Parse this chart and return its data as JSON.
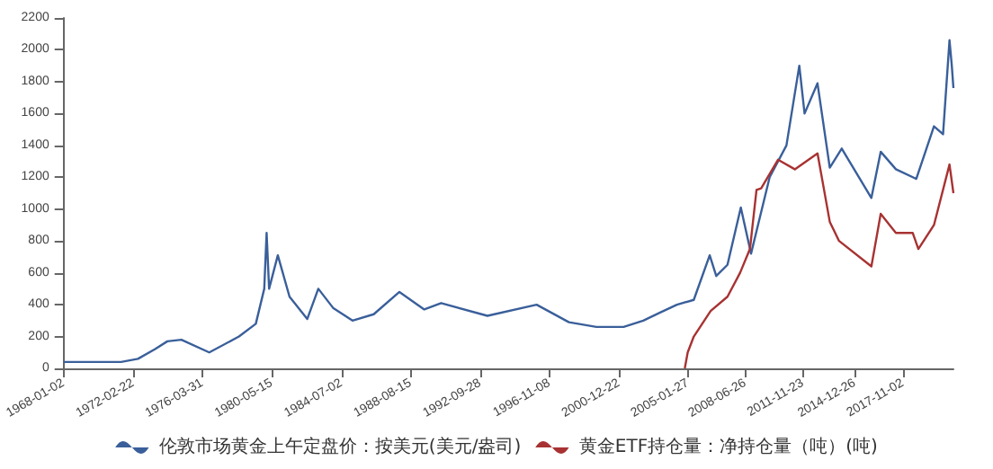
{
  "chart_data": {
    "type": "line",
    "ylim": [
      0,
      2200
    ],
    "yticks": [
      0,
      200,
      400,
      600,
      800,
      1000,
      1200,
      1400,
      1600,
      1800,
      2000,
      2200
    ],
    "xlim": [
      "1968-01-02",
      "2020-10-30"
    ],
    "xticks": [
      "1968-01-02",
      "1972-02-22",
      "1976-03-31",
      "1980-05-15",
      "1984-07-02",
      "1988-08-15",
      "1992-09-28",
      "1996-11-08",
      "2000-12-22",
      "2005-01-27",
      "2008-06-26",
      "2011-11-23",
      "2014-12-26",
      "2017-11-02"
    ],
    "grid": false,
    "legend": "bottom",
    "marker": "none",
    "line_style": "solid",
    "series": [
      {
        "name": "伦敦市场黄金上午定盘价：按美元(美元/盎司)",
        "color": "#3a5f9a",
        "x": [
          "1968-01-02",
          "1970-01-02",
          "1971-06-01",
          "1972-06-01",
          "1973-06-01",
          "1974-03-01",
          "1974-12-30",
          "1976-08-25",
          "1978-06-01",
          "1979-06-01",
          "1979-12-01",
          "1980-01-21",
          "1980-03-15",
          "1980-09-20",
          "1981-06-01",
          "1982-06-20",
          "1983-02-15",
          "1984-01-01",
          "1985-02-25",
          "1986-06-01",
          "1987-12-10",
          "1989-06-01",
          "1990-06-01",
          "1993-03-01",
          "1996-02-01",
          "1998-01-01",
          "1999-08-20",
          "2001-04-01",
          "2002-06-01",
          "2003-06-01",
          "2004-06-01",
          "2005-06-01",
          "2006-05-12",
          "2006-10-01",
          "2007-06-01",
          "2008-03-17",
          "2008-10-24",
          "2009-12-02",
          "2010-12-01",
          "2011-09-06",
          "2011-12-29",
          "2012-10-04",
          "2013-06-28",
          "2014-03-14",
          "2015-12-17",
          "2016-07-06",
          "2017-06-01",
          "2018-08-16",
          "2019-09-04",
          "2020-03-19",
          "2020-08-06",
          "2020-09-25",
          "2020-10-30"
        ],
        "values": [
          40,
          40,
          40,
          60,
          120,
          170,
          180,
          100,
          200,
          280,
          500,
          850,
          500,
          710,
          450,
          310,
          500,
          380,
          300,
          340,
          480,
          370,
          410,
          330,
          400,
          290,
          260,
          260,
          300,
          350,
          400,
          430,
          710,
          580,
          650,
          1010,
          720,
          1200,
          1400,
          1900,
          1600,
          1790,
          1260,
          1380,
          1070,
          1360,
          1250,
          1190,
          1520,
          1470,
          2060,
          1900,
          1760
        ]
      },
      {
        "name": "黄金ETF持仓量：净持仓量（吨）(吨)",
        "color": "#a83232",
        "x": [
          "2004-11-18",
          "2005-01-20",
          "2005-06-01",
          "2006-06-01",
          "2007-06-01",
          "2008-03-01",
          "2008-10-01",
          "2009-02-20",
          "2009-06-01",
          "2010-06-01",
          "2011-06-01",
          "2012-10-05",
          "2013-06-28",
          "2014-01-15",
          "2015-12-17",
          "2016-07-06",
          "2017-06-01",
          "2018-06-01",
          "2018-10-01",
          "2019-09-04",
          "2020-08-06",
          "2020-10-30"
        ],
        "values": [
          0,
          100,
          200,
          360,
          450,
          600,
          750,
          1120,
          1130,
          1310,
          1250,
          1350,
          920,
          800,
          640,
          970,
          850,
          850,
          750,
          900,
          1280,
          1100
        ]
      }
    ]
  }
}
